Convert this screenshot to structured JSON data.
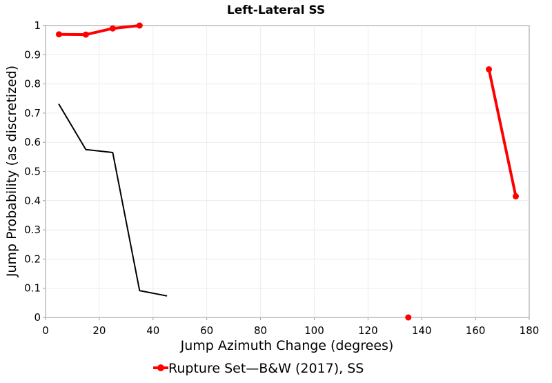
{
  "chart_data": {
    "type": "line",
    "title": "Left-Lateral SS",
    "xlabel": "Jump Azimuth Change (degrees)",
    "ylabel": "Jump Probability (as discretized)",
    "xlim": [
      0,
      180
    ],
    "ylim": [
      0,
      1
    ],
    "x_ticks": [
      0,
      20,
      40,
      60,
      80,
      100,
      120,
      140,
      160,
      180
    ],
    "y_ticks": [
      0,
      0.1,
      0.2,
      0.3,
      0.4,
      0.5,
      0.6,
      0.7,
      0.8,
      0.9,
      1
    ],
    "x_tick_labels": [
      "0",
      "20",
      "40",
      "60",
      "80",
      "100",
      "120",
      "140",
      "160",
      "180"
    ],
    "y_tick_labels": [
      "0",
      "0.1",
      "0.2",
      "0.3",
      "0.4",
      "0.5",
      "0.6",
      "0.7",
      "0.8",
      "0.9",
      "1"
    ],
    "grid": true,
    "legend_position": "bottom-center",
    "series": [
      {
        "name": "B&W (2017), SS",
        "color": "#000000",
        "markers": false,
        "in_legend": false,
        "segments": [
          {
            "x": [
              5,
              15,
              25,
              35,
              45
            ],
            "y": [
              0.73,
              0.575,
              0.565,
              0.092,
              0.074
            ]
          }
        ]
      },
      {
        "name": "Rupture Set",
        "color": "#ff0000",
        "markers": true,
        "in_legend": true,
        "segments": [
          {
            "x": [
              5,
              15,
              25,
              35
            ],
            "y": [
              0.97,
              0.969,
              0.99,
              1.0
            ]
          },
          {
            "x": [
              135
            ],
            "y": [
              0.0
            ]
          },
          {
            "x": [
              165,
              175
            ],
            "y": [
              0.85,
              0.415
            ]
          }
        ]
      }
    ],
    "legend": {
      "label": "Rupture Set—B&W (2017), SS",
      "color": "#ff0000"
    }
  }
}
